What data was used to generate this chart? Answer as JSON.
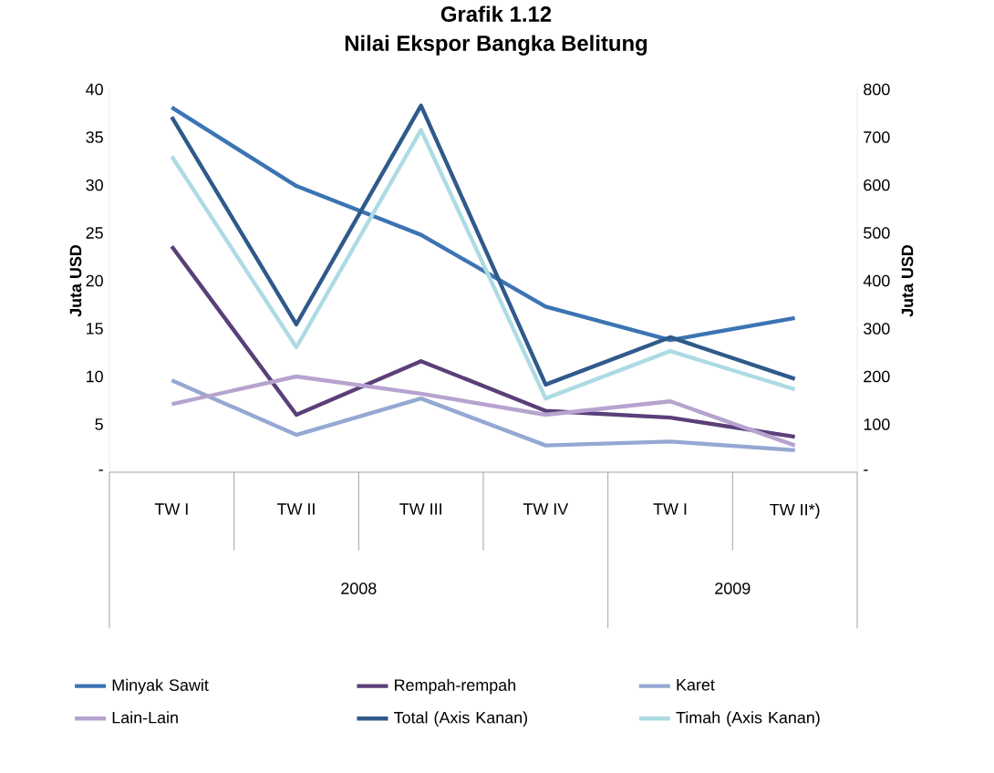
{
  "chart_data": {
    "type": "line",
    "title": "Grafik 1.12",
    "subtitle": "Nilai Ekspor Bangka Belitung",
    "ylabel": "Juta USD",
    "y2label": "Juta USD",
    "categories": [
      "TW I",
      "TW II",
      "TW III",
      "TW IV",
      "TW I",
      "TW II*)"
    ],
    "annotations": [
      "2008",
      "2009"
    ],
    "ylim": [
      0,
      40
    ],
    "yticks": [
      {
        "value": 0,
        "label": "-"
      },
      5,
      10,
      15,
      20,
      25,
      30,
      35,
      40
    ],
    "y2lim": [
      0,
      800
    ],
    "y2ticks": [
      {
        "value": 0,
        "label": "-"
      },
      100,
      200,
      300,
      400,
      500,
      600,
      700,
      800
    ],
    "legend": "bottom",
    "series": [
      {
        "name": "Minyak Sawit",
        "color": "#3c74b4",
        "values": [
          38.1,
          29.9,
          24.8,
          17.3,
          13.8,
          16.1
        ]
      },
      {
        "name": "Rempah-rempah",
        "color": "#5a3f78",
        "values": [
          23.6,
          6.0,
          11.6,
          6.4,
          5.7,
          3.7
        ]
      },
      {
        "name": "Karet",
        "color": "#95a8d2",
        "values": [
          9.6,
          3.9,
          7.7,
          2.8,
          3.2,
          2.3
        ]
      },
      {
        "name": "Lain-Lain",
        "color": "#b7a3cf",
        "values": [
          7.1,
          10.0,
          8.2,
          6.0,
          7.4,
          2.8
        ]
      },
      {
        "name": "Total (Axis Kanan)",
        "color": "#2f5a8a",
        "axis": "y2",
        "values": [
          742,
          309,
          766,
          183,
          282,
          195
        ]
      },
      {
        "name": "Timah (Axis Kanan)",
        "color": "#addbe4",
        "axis": "y2",
        "values": [
          660,
          261,
          715,
          154,
          253,
          173
        ]
      }
    ]
  }
}
